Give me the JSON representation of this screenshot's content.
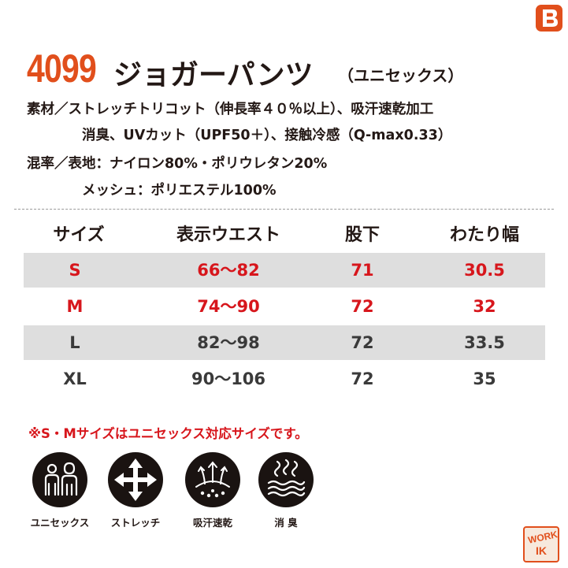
{
  "header": {
    "model_number": "4099",
    "product_name": "ジョガーパンツ",
    "unisex_note": "（ユニセックス）"
  },
  "specs": {
    "material_line1": "素材／ストレッチトリコット（伸長率４０％以上）、吸汗速乾加工",
    "material_line2": "消臭、UVカット（UPF50＋）、接触冷感（Q-max0.33）",
    "blend_line1": "混率／表地：ナイロン80%・ポリウレタン20%",
    "blend_line2": "メッシュ：ポリエステル100%"
  },
  "size_table": {
    "headers": [
      "サイズ",
      "表示ウエスト",
      "股下",
      "わたり幅"
    ],
    "rows": [
      {
        "size": "S",
        "waist": "66～82",
        "inseam": "71",
        "thigh": "30.5"
      },
      {
        "size": "M",
        "waist": "74～90",
        "inseam": "72",
        "thigh": "32"
      },
      {
        "size": "L",
        "waist": "82～98",
        "inseam": "72",
        "thigh": "33.5"
      },
      {
        "size": "XL",
        "waist": "90～106",
        "inseam": "72",
        "thigh": "35"
      }
    ]
  },
  "footnote": "※S・Mサイズはユニセックス対応サイズです。",
  "features": [
    {
      "icon": "unisex-people-icon",
      "label": "ユニセックス"
    },
    {
      "icon": "stretch-arrows-icon",
      "label": "ストレッチ"
    },
    {
      "icon": "sweat-absorb-icon",
      "label": "吸汗速乾"
    },
    {
      "icon": "deodorize-icon",
      "label": "消 臭"
    }
  ],
  "badge_text": {
    "top": "WORK",
    "bottom": "IK"
  },
  "colors": {
    "brand_orange": "#e14f1c",
    "highlight_red": "#d7161c",
    "text_dark": "#231815",
    "row_gray": "#dedede"
  }
}
